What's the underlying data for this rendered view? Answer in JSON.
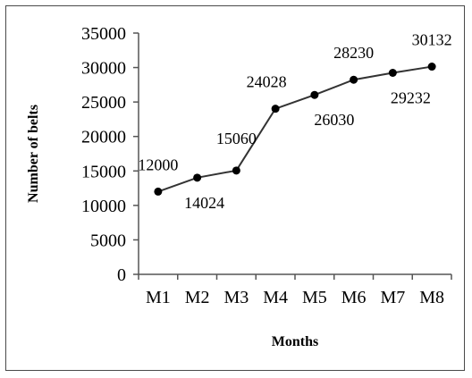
{
  "chart_data": {
    "type": "line",
    "title": "",
    "xlabel": "Months",
    "ylabel": "Number of belts",
    "categories": [
      "M1",
      "M2",
      "M3",
      "M4",
      "M5",
      "M6",
      "M7",
      "M8"
    ],
    "series": [
      {
        "values": [
          12000,
          14024,
          15060,
          24028,
          26030,
          28230,
          29232,
          30132
        ],
        "data_labels": [
          "12000",
          "14024",
          "15060",
          "24028",
          "26030",
          "28230",
          "29232",
          "30132"
        ]
      }
    ],
    "ylim": [
      0,
      35000
    ],
    "yticks": [
      "0",
      "5000",
      "10000",
      "15000",
      "20000",
      "25000",
      "30000",
      "35000"
    ],
    "grid": false,
    "legend": "none",
    "line_color": "#333333",
    "marker_color": "#000000"
  }
}
